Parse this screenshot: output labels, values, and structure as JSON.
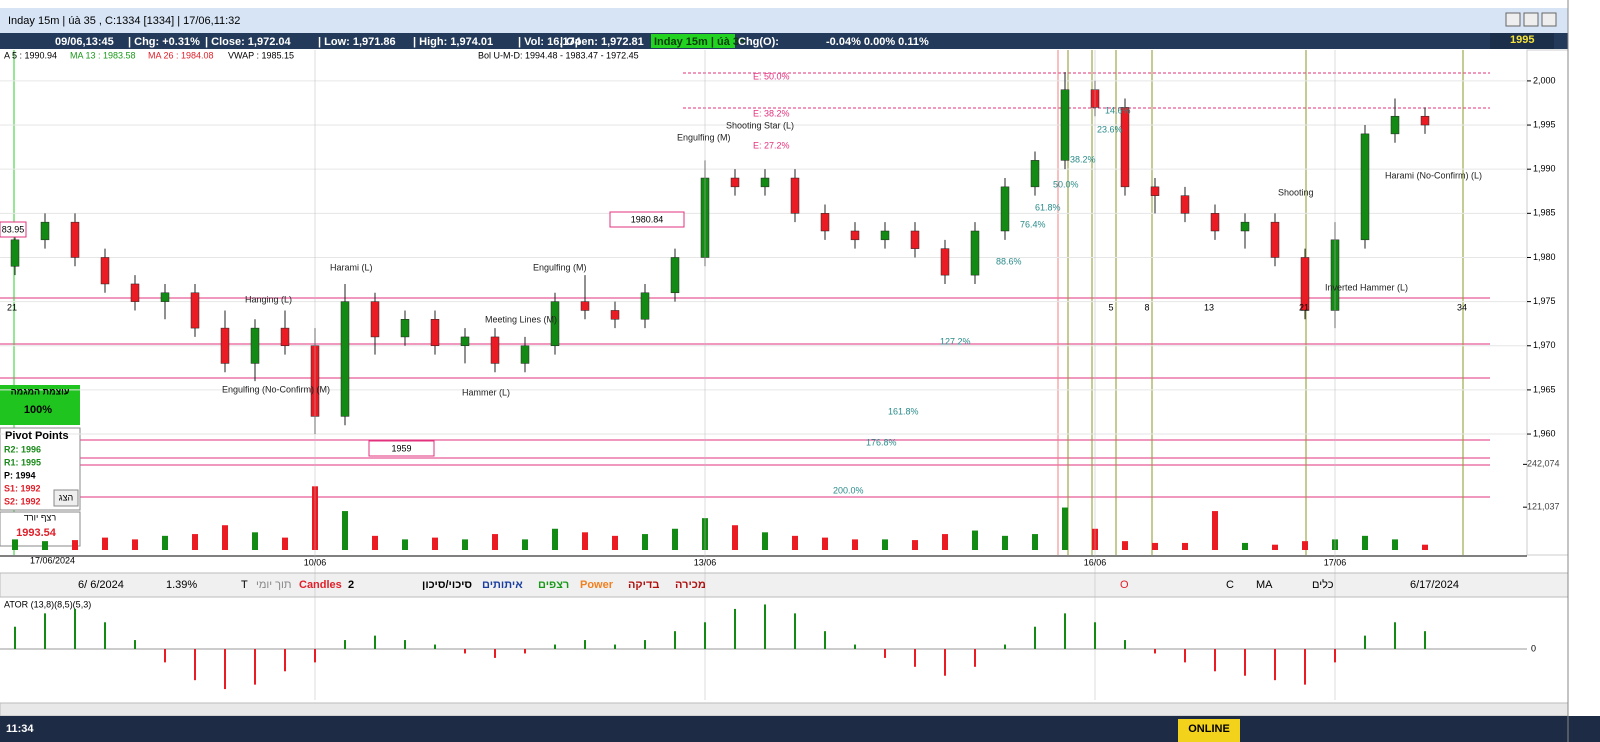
{
  "window": {
    "title": "Inday 15m | úà 35 , C:1334 [1334] | 17/06,11:32"
  },
  "info_bar": {
    "items": [
      "09/06,13:45",
      "| Chg: +0.31%",
      "| Close: 1,972.04",
      "| Low: 1,971.86",
      "| High: 1,974.01",
      "| Vol: 16,174",
      "| Open: 1,972.81"
    ],
    "badge": "Inday 15m | úà 35",
    "chg_o_label": "Chg(O):",
    "chg_o": "-0.04% 0.00% 0.11%",
    "price": "1995"
  },
  "indicators": [
    "A 5 : 1990.94",
    "MA 13 : 1983.58",
    "MA 26 : 1984.08",
    "VWAP : 1985.15",
    "Bol U-M-D: 1994.48 - 1983.47 - 1972.45"
  ],
  "chart_data": {
    "type": "candlestick",
    "categories": [
      null,
      null,
      null,
      null,
      null,
      null,
      null,
      null,
      null,
      null,
      "10/06",
      null,
      null,
      null,
      null,
      null,
      null,
      null,
      null,
      null,
      null,
      null,
      null,
      "13/06",
      null,
      null,
      null,
      null,
      null,
      null,
      null,
      null,
      null,
      null,
      null,
      null,
      "16/06",
      null,
      null,
      null,
      null,
      null,
      null,
      null,
      "17/06",
      null,
      null,
      null
    ],
    "open": [
      1979,
      1982,
      1984,
      1980,
      1977,
      1975,
      1976,
      1972,
      1968,
      1972,
      1970,
      1962,
      1975,
      1971,
      1973,
      1970,
      1971,
      1968,
      1970,
      1975,
      1974,
      1973,
      1976,
      1980,
      1989,
      1988,
      1989,
      1985,
      1983,
      1982,
      1983,
      1981,
      1978,
      1983,
      1988,
      1991,
      1999,
      1997,
      1988,
      1987,
      1985,
      1983,
      1984,
      1980,
      1974,
      1982,
      1994,
      1996
    ],
    "high": [
      1983,
      1985,
      1985,
      1981,
      1978,
      1977,
      1977,
      1974,
      1973,
      1974,
      1972,
      1977,
      1976,
      1974,
      1974,
      1972,
      1972,
      1971,
      1976,
      1978,
      1975,
      1977,
      1981,
      1991,
      1990,
      1990,
      1990,
      1986,
      1984,
      1984,
      1984,
      1982,
      1984,
      1989,
      1992,
      2001,
      2000,
      1998,
      1989,
      1988,
      1986,
      1985,
      1985,
      1981,
      1984,
      1995,
      1998,
      1997
    ],
    "low": [
      1978,
      1981,
      1979,
      1976,
      1974,
      1973,
      1971,
      1967,
      1966,
      1969,
      1960,
      1961,
      1969,
      1970,
      1969,
      1968,
      1967,
      1967,
      1969,
      1973,
      1972,
      1972,
      1975,
      1979,
      1987,
      1987,
      1984,
      1982,
      1981,
      1981,
      1980,
      1977,
      1977,
      1982,
      1987,
      1990,
      1996,
      1987,
      1985,
      1984,
      1982,
      1981,
      1979,
      1973,
      1972,
      1981,
      1993,
      1994
    ],
    "close": [
      1982,
      1984,
      1980,
      1977,
      1975,
      1976,
      1972,
      1968,
      1972,
      1970,
      1962,
      1975,
      1971,
      1973,
      1970,
      1971,
      1968,
      1970,
      1975,
      1974,
      1973,
      1976,
      1980,
      1989,
      1988,
      1989,
      1985,
      1983,
      1982,
      1983,
      1981,
      1978,
      1983,
      1988,
      1991,
      1999,
      1997,
      1988,
      1987,
      1985,
      1983,
      1984,
      1980,
      1974,
      1982,
      1994,
      1996,
      1995
    ],
    "up_color": "#138a13",
    "down_color": "#ea1b22",
    "ylim": [
      1946.3,
      2003.5
    ],
    "yticks": [
      {
        "value": 2000,
        "label": "2,000"
      },
      {
        "value": 1995,
        "label": "1,995"
      },
      {
        "value": 1990,
        "label": "1,990"
      },
      {
        "value": 1985,
        "label": "1,985"
      },
      {
        "value": 1980,
        "label": "1,980"
      },
      {
        "value": 1975,
        "label": "1,975"
      },
      {
        "value": 1970,
        "label": "1,970"
      },
      {
        "value": 1965,
        "label": "1,965"
      },
      {
        "value": 1960,
        "label": "1,960"
      }
    ],
    "volume": [
      30000,
      25000,
      28000,
      35000,
      30000,
      40000,
      45000,
      70000,
      50000,
      35000,
      180000,
      110000,
      40000,
      30000,
      35000,
      30000,
      45000,
      30000,
      60000,
      50000,
      40000,
      45000,
      60000,
      90000,
      70000,
      50000,
      40000,
      35000,
      30000,
      30000,
      28000,
      45000,
      55000,
      40000,
      45000,
      120000,
      60000,
      25000,
      20000,
      20000,
      110000,
      20000,
      15000,
      25000,
      30000,
      40000,
      30000,
      15000
    ],
    "volume_ylim": [
      0,
      260000
    ],
    "volume_ticks": [
      {
        "value": 242074,
        "label": "242,074"
      },
      {
        "value": 121037,
        "label": "121,037"
      }
    ],
    "grid": true
  },
  "oscillator": {
    "label": "ATOR (13,8)(8,5)(5,3)",
    "values": [
      0.5,
      0.8,
      0.9,
      0.6,
      0.2,
      -0.3,
      -0.7,
      -0.9,
      -0.8,
      -0.5,
      -0.3,
      0.2,
      0.3,
      0.2,
      0.1,
      -0.1,
      -0.2,
      -0.1,
      0.1,
      0.2,
      0.1,
      0.2,
      0.4,
      0.6,
      0.9,
      1.0,
      0.8,
      0.4,
      0.1,
      -0.2,
      -0.4,
      -0.6,
      -0.4,
      0.1,
      0.5,
      0.8,
      0.6,
      0.2,
      -0.1,
      -0.3,
      -0.5,
      -0.6,
      -0.7,
      -0.8,
      -0.3,
      0.3,
      0.6,
      0.4
    ],
    "ylim": [
      -1.1,
      1.1
    ],
    "yticks": [
      0
    ],
    "up_color": "#138a13",
    "down_color": "#ea1b22"
  },
  "annotations": [
    "Harami (L)",
    "Engulfing (M)",
    "Shooting Star (L)",
    "Engulfing (M)",
    "Meeting Lines (M)",
    "Hammer (L)",
    "Hanging (L)",
    "Engulfing (No-Confirm) (M)",
    "Inverted Hammer (L)",
    "Harami (No-Confirm) (L)",
    "Shooting"
  ],
  "fib_labels": [
    "E: 50.0%",
    "E: 38.2%",
    "E: 27.2%",
    "14.6%",
    "23.6%",
    "38.2%",
    "50.0%",
    "61.8%",
    "76.4%",
    "88.6%",
    "127.2%",
    "161.8%",
    "176.8%",
    "200.0%"
  ],
  "price_boxes": [
    "1980.84",
    "1959",
    "83.95"
  ],
  "counts": [
    "21",
    "5",
    "8",
    "13",
    "21",
    "34"
  ],
  "toolbar": [
    "6/ 6/2024",
    "1.39%",
    "T",
    "תוך יומי",
    "Candles",
    "2",
    "סיכוי/סיכון",
    "איתותים",
    "רצפים",
    "Power",
    "בדיקה",
    "מכירה",
    "O",
    "C",
    "MA",
    "כלים",
    "6/17/2024"
  ],
  "left_panel": {
    "trend_title": "עוצמת המגמה",
    "trend_value": "100%",
    "pivot_title": "Pivot Points",
    "pivots": [
      "R2: 1996",
      "R1: 1995",
      "P: 1994",
      "S1: 1992",
      "S2: 1992"
    ],
    "show": "הצג",
    "streak_title": "רצף יורד",
    "streak_value": "1993.54",
    "date": "17/06/2024"
  },
  "taskbar": {
    "time": "11:34",
    "status": "ONLINE"
  }
}
